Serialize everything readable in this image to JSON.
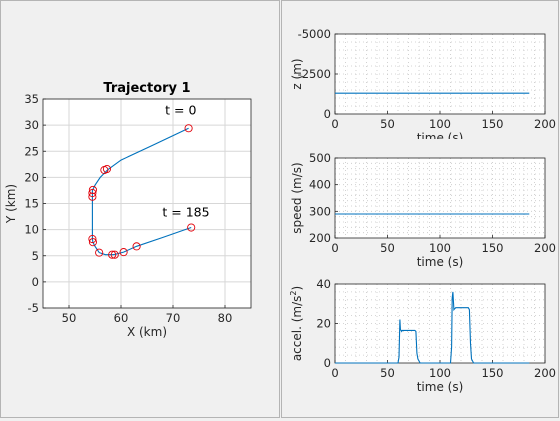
{
  "colors": {
    "line": "#0072BD",
    "marker": "#e0000a",
    "axes_bg": "#ffffff",
    "grid": "#d7d7d7",
    "text": "#262626"
  },
  "chart_data": [
    {
      "type": "line",
      "title": "Trajectory 1",
      "xlabel": "X (km)",
      "ylabel": "Y (km)",
      "xlim": [
        45,
        85
      ],
      "ylim": [
        -5,
        35
      ],
      "xticks": [
        50,
        60,
        70,
        80
      ],
      "yticks": [
        -5,
        0,
        5,
        10,
        15,
        20,
        25,
        30,
        35
      ],
      "grid": true,
      "aspect": "equal",
      "series": [
        {
          "values": [
            [
              73.0,
              29.4
            ],
            [
              66.0,
              26.1
            ],
            [
              60.0,
              23.3
            ],
            [
              57.5,
              21.5
            ],
            [
              56.0,
              20.0
            ],
            [
              55.0,
              18.5
            ],
            [
              54.5,
              17.5
            ],
            [
              54.5,
              16.5
            ],
            [
              54.5,
              12.0
            ],
            [
              54.5,
              8.2
            ],
            [
              54.6,
              7.6
            ],
            [
              55.0,
              6.8
            ],
            [
              55.8,
              5.6
            ],
            [
              57.0,
              5.2
            ],
            [
              58.5,
              5.2
            ],
            [
              59.0,
              5.3
            ],
            [
              60.5,
              5.7
            ],
            [
              63.0,
              6.8
            ],
            [
              68.0,
              8.5
            ],
            [
              73.5,
              10.4
            ]
          ]
        }
      ],
      "markers": [
        [
          73.0,
          29.4
        ],
        [
          57.3,
          21.6
        ],
        [
          56.8,
          21.4
        ],
        [
          54.6,
          17.6
        ],
        [
          54.5,
          17.0
        ],
        [
          54.5,
          16.3
        ],
        [
          54.5,
          8.2
        ],
        [
          54.6,
          7.6
        ],
        [
          55.8,
          5.6
        ],
        [
          58.3,
          5.2
        ],
        [
          58.8,
          5.2
        ],
        [
          60.5,
          5.7
        ],
        [
          63.0,
          6.8
        ],
        [
          73.5,
          10.4
        ]
      ],
      "annotations": [
        {
          "text": "t = 0",
          "x": 71.5,
          "y": 32.0
        },
        {
          "text": "t = 185",
          "x": 72.5,
          "y": 12.5
        }
      ]
    },
    {
      "type": "line",
      "xlabel": "time (s)",
      "ylabel": "z (m)",
      "xlim": [
        0,
        200
      ],
      "ylim": [
        -5000,
        0
      ],
      "y_reversed": true,
      "xticks": [
        0,
        50,
        100,
        150,
        200
      ],
      "yticks": [
        -5000,
        -2500,
        0
      ],
      "grid": "minor-dotted",
      "series": [
        {
          "x": [
            0,
            185
          ],
          "values": [
            -1300,
            -1300
          ]
        }
      ]
    },
    {
      "type": "line",
      "xlabel": "time (s)",
      "ylabel": "speed (m/s)",
      "xlim": [
        0,
        200
      ],
      "ylim": [
        200,
        500
      ],
      "xticks": [
        0,
        50,
        100,
        150,
        200
      ],
      "yticks": [
        200,
        300,
        400,
        500
      ],
      "grid": "minor-dotted",
      "series": [
        {
          "x": [
            0,
            185
          ],
          "values": [
            290,
            290
          ]
        }
      ]
    },
    {
      "type": "line",
      "xlabel": "time (s)",
      "ylabel": "accel. (m/s",
      "ylabel_sup": "2",
      "ylabel_tail": ")",
      "xlim": [
        0,
        200
      ],
      "ylim": [
        0,
        40
      ],
      "xticks": [
        0,
        50,
        100,
        150,
        200
      ],
      "yticks": [
        0,
        20,
        40
      ],
      "grid": "minor-dotted",
      "series": [
        {
          "x": [
            0,
            60,
            61,
            61.8,
            62.3,
            63.5,
            64,
            76,
            77,
            78,
            79,
            81,
            110,
            111,
            111.6,
            112.3,
            113.2,
            114,
            115,
            127,
            128,
            129,
            130,
            132,
            185
          ],
          "values": [
            0,
            0,
            3,
            22,
            17,
            16,
            16.5,
            16.5,
            16,
            5,
            2,
            0,
            0,
            8,
            33,
            36,
            27,
            27.5,
            28,
            28,
            27,
            10,
            2,
            0,
            0
          ]
        }
      ]
    }
  ]
}
